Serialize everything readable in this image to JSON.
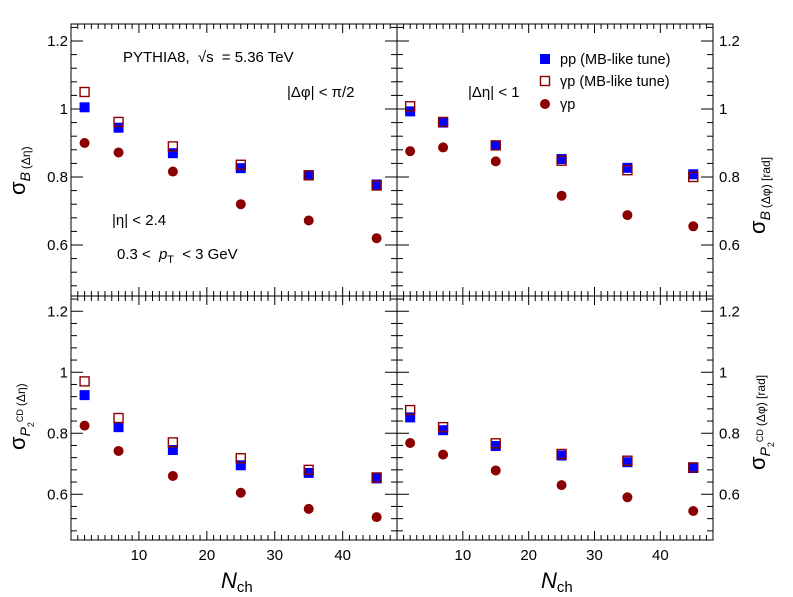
{
  "chart_data": {
    "type": "scatter",
    "layout": "2x2 panels sharing x axis",
    "xlabel": "N",
    "xlabel_sub": "ch",
    "xlim": [
      0,
      48
    ],
    "x_ticks": [
      10,
      20,
      30,
      40
    ],
    "x": [
      2,
      7,
      15,
      25,
      35,
      45
    ],
    "colors": {
      "pp": "#0000ff",
      "gp_mb": "#8b0000",
      "gp": "#8b0000"
    },
    "legend": {
      "placement": "top-right panel, top-right",
      "entries": [
        {
          "key": "pp",
          "label": "pp (MB-like tune)",
          "marker": "filled-square"
        },
        {
          "key": "gp_mb",
          "label": "γp (MB-like tune)",
          "marker": "open-square"
        },
        {
          "key": "gp",
          "label": "γp",
          "marker": "filled-circle"
        }
      ]
    },
    "annotations": {
      "generator_prefix": "PYTHIA8,",
      "sqrt": "√",
      "s_var": "s",
      "energy": "= 5.36 TeV",
      "dphi_cut": "|Δφ| < π/2",
      "deta_cut": "|Δη| < 1",
      "eta_cut": "|η| < 2.4",
      "pt_left": "0.3 <",
      "pt_var": "p",
      "pt_sub": "T",
      "pt_right": "< 3 GeV"
    },
    "panels": [
      {
        "id": "top-left",
        "ylim": [
          0.45,
          1.25
        ],
        "y_ticks": [
          0.6,
          0.8,
          1,
          1.2
        ],
        "y_tick_labels": [
          "0.6",
          "0.8",
          "1",
          "1.2"
        ],
        "y_label_main": "σ",
        "y_label_sub": "B",
        "y_label_extra": "(Δη)",
        "y_label_side": "left",
        "series": [
          {
            "key": "pp",
            "values": [
              1.005,
              0.945,
              0.87,
              0.826,
              0.805,
              0.778
            ]
          },
          {
            "key": "gp_mb",
            "values": [
              1.05,
              0.962,
              0.89,
              0.836,
              0.805,
              0.775
            ]
          },
          {
            "key": "gp",
            "values": [
              0.9,
              0.872,
              0.816,
              0.72,
              0.672,
              0.62
            ]
          }
        ]
      },
      {
        "id": "top-right",
        "ylim": [
          0.45,
          1.25
        ],
        "y_ticks": [
          0.6,
          0.8,
          1,
          1.2
        ],
        "y_tick_labels": [
          "0.6",
          "0.8",
          "1",
          "1.2"
        ],
        "y_label_main": "σ",
        "y_label_sub": "B",
        "y_label_extra": "(Δφ) [rad]",
        "y_label_side": "right",
        "series": [
          {
            "key": "pp",
            "values": [
              0.993,
              0.96,
              0.893,
              0.853,
              0.827,
              0.808
            ]
          },
          {
            "key": "gp_mb",
            "values": [
              1.008,
              0.962,
              0.893,
              0.848,
              0.82,
              0.8
            ]
          },
          {
            "key": "gp",
            "values": [
              0.876,
              0.887,
              0.846,
              0.745,
              0.688,
              0.655
            ]
          }
        ]
      },
      {
        "id": "bottom-left",
        "ylim": [
          0.45,
          1.25
        ],
        "y_ticks": [
          0.6,
          0.8,
          1,
          1.2
        ],
        "y_tick_labels": [
          "0.6",
          "0.8",
          "1",
          "1.2"
        ],
        "y_label_main": "σ",
        "y_label_sub": "P",
        "y_label_subsub": "2",
        "y_label_sup": "CD",
        "y_label_extra": "(Δη)",
        "y_label_side": "left",
        "series": [
          {
            "key": "pp",
            "values": [
              0.925,
              0.82,
              0.745,
              0.695,
              0.67,
              0.652
            ]
          },
          {
            "key": "gp_mb",
            "values": [
              0.97,
              0.85,
              0.77,
              0.718,
              0.68,
              0.655
            ]
          },
          {
            "key": "gp",
            "values": [
              0.825,
              0.742,
              0.66,
              0.605,
              0.552,
              0.525
            ]
          }
        ]
      },
      {
        "id": "bottom-right",
        "ylim": [
          0.45,
          1.25
        ],
        "y_ticks": [
          0.6,
          0.8,
          1,
          1.2
        ],
        "y_tick_labels": [
          "0.6",
          "0.8",
          "1",
          "1.2"
        ],
        "y_label_main": "σ",
        "y_label_sub": "P",
        "y_label_subsub": "2",
        "y_label_sup": "CD",
        "y_label_extra": "(Δφ) [rad]",
        "y_label_side": "right",
        "series": [
          {
            "key": "pp",
            "values": [
              0.852,
              0.81,
              0.758,
              0.727,
              0.705,
              0.686
            ]
          },
          {
            "key": "gp_mb",
            "values": [
              0.876,
              0.82,
              0.767,
              0.732,
              0.71,
              0.688
            ]
          },
          {
            "key": "gp",
            "values": [
              0.768,
              0.73,
              0.678,
              0.63,
              0.59,
              0.545
            ]
          }
        ]
      }
    ]
  }
}
